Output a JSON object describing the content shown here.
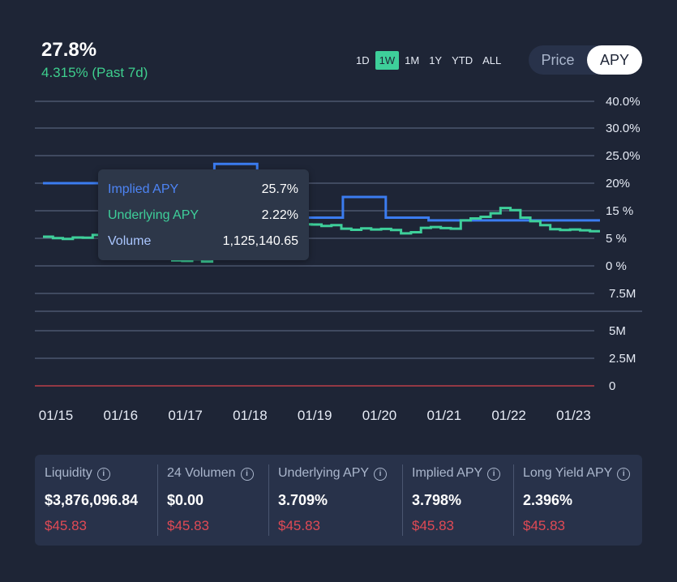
{
  "header": {
    "value": "27.8%",
    "change": "4.315% (Past 7d)"
  },
  "ranges": [
    "1D",
    "1W",
    "1M",
    "1Y",
    "YTD",
    "ALL"
  ],
  "active_range": "1W",
  "toggle": {
    "price": "Price",
    "apy": "APY",
    "active": "APY"
  },
  "tooltip": {
    "rows": [
      {
        "label": "Implied APY",
        "value": "25.7%",
        "color": "#4d84f5"
      },
      {
        "label": "Underlying APY",
        "value": "2.22%",
        "color": "#3ecf9a"
      },
      {
        "label": "Volume",
        "value": "1,125,140.65",
        "color": "#aac6ff"
      }
    ]
  },
  "chart_data": {
    "type": "line",
    "x_tick_labels": [
      "01/15",
      "01/16",
      "01/17",
      "01/18",
      "01/19",
      "01/20",
      "01/21",
      "01/22",
      "01/23"
    ],
    "y_tick_labels_apy": [
      "40.0%",
      "30.0%",
      "25.0%",
      "20%",
      "15 %",
      "5 %",
      "0 %"
    ],
    "y_tick_labels_volume": [
      "7.5M",
      "5M",
      "2.5M",
      "0"
    ],
    "series": [
      {
        "name": "Implied APY",
        "color": "#3b7cf0",
        "values": [
          20.0,
          20.0,
          20.0,
          20.0,
          23.5,
          21.5,
          12.5,
          17.5,
          12.5,
          11.5,
          11.5,
          11.5,
          11.5
        ]
      },
      {
        "name": "Underlying APY",
        "color": "#3ecf9a",
        "values": [
          5.6,
          5.1,
          4.9,
          5.3,
          5.2,
          6.2,
          6.8,
          7.1,
          6.7,
          6.1,
          5.4,
          4.0,
          2.2,
          1.0,
          0.9,
          1.2,
          0.8,
          2.5,
          5.3,
          6.0,
          8.1,
          8.8,
          9.2,
          10.5,
          8.3,
          9.6,
          10.1,
          10.0,
          9.5,
          9.8,
          8.5,
          8.1,
          8.6,
          8.2,
          8.4,
          8.0,
          6.8,
          7.2,
          8.8,
          9.1,
          8.7,
          8.5,
          11.5,
          12.2,
          12.8,
          14.1,
          15.5,
          15.1,
          12.5,
          11.2,
          9.8,
          8.3,
          8.0,
          8.2,
          7.9,
          7.6
        ]
      }
    ],
    "threshold_color": "#d9434e",
    "grid": true
  },
  "stats": [
    {
      "title": "Liquidity",
      "value": "$3,876,096.84",
      "sub": "$45.83"
    },
    {
      "title": "24 Volumen",
      "value": "$0.00",
      "sub": "$45.83"
    },
    {
      "title": "Underlying APY",
      "value": "3.709%",
      "sub": "$45.83"
    },
    {
      "title": "Implied APY",
      "value": "3.798%",
      "sub": "$45.83"
    },
    {
      "title": "Long Yield APY",
      "value": "2.396%",
      "sub": "$45.83"
    }
  ],
  "info_icon": "info-icon",
  "colors": {
    "accent": "#3ecf9a",
    "negative": "#e04a55",
    "background": "#1e2536"
  }
}
